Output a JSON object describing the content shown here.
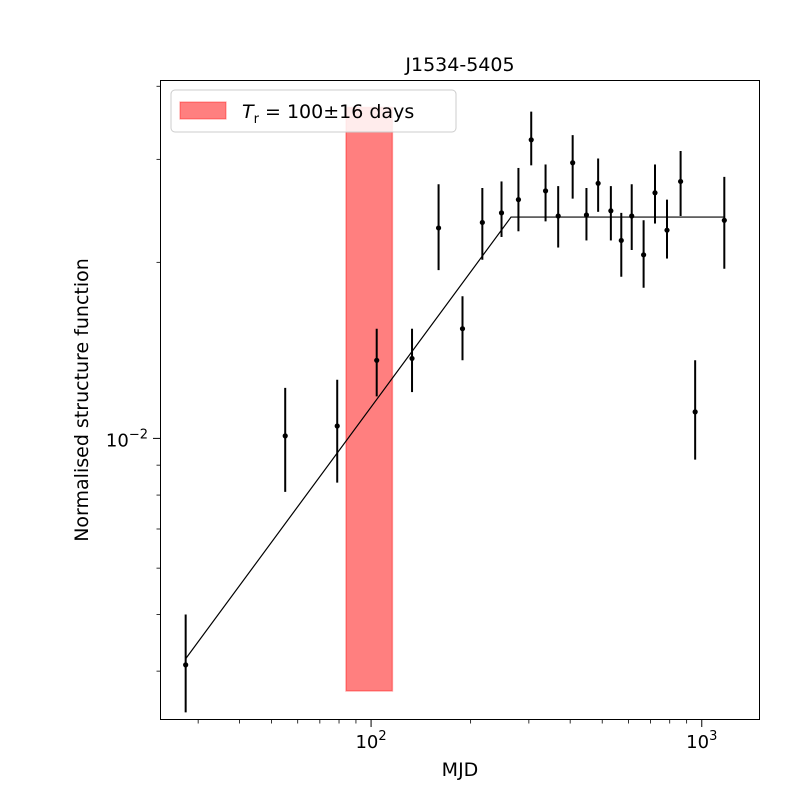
{
  "chart_data": {
    "type": "scatter",
    "title": "J1534-5405",
    "xlabel": "MJD",
    "ylabel": "Normalised structure function",
    "xscale": "log",
    "yscale": "log",
    "xlim": [
      23,
      1500
    ],
    "ylim": [
      0.0033,
      0.041
    ],
    "grid": false,
    "legend_position": "top-left",
    "x_major_ticks": [
      {
        "value": 100,
        "base": "10",
        "exp": "2"
      },
      {
        "value": 1000,
        "base": "10",
        "exp": "3"
      }
    ],
    "y_major_ticks": [
      {
        "value": 0.01,
        "base": "10",
        "exp": "−2"
      }
    ],
    "points": [
      {
        "x": 27.5,
        "y": 0.0041,
        "yerr_low": 0.0034,
        "yerr_high": 0.005
      },
      {
        "x": 55,
        "y": 0.0101,
        "yerr_low": 0.0081,
        "yerr_high": 0.0122
      },
      {
        "x": 79,
        "y": 0.0105,
        "yerr_low": 0.0084,
        "yerr_high": 0.0126
      },
      {
        "x": 104,
        "y": 0.0136,
        "yerr_low": 0.0118,
        "yerr_high": 0.0154
      },
      {
        "x": 133,
        "y": 0.0137,
        "yerr_low": 0.012,
        "yerr_high": 0.0154
      },
      {
        "x": 160,
        "y": 0.0229,
        "yerr_low": 0.0194,
        "yerr_high": 0.0272
      },
      {
        "x": 189,
        "y": 0.0154,
        "yerr_low": 0.0136,
        "yerr_high": 0.0175
      },
      {
        "x": 217,
        "y": 0.0234,
        "yerr_low": 0.0202,
        "yerr_high": 0.0268
      },
      {
        "x": 248,
        "y": 0.0243,
        "yerr_low": 0.0221,
        "yerr_high": 0.0275
      },
      {
        "x": 279,
        "y": 0.0256,
        "yerr_low": 0.0226,
        "yerr_high": 0.029
      },
      {
        "x": 305,
        "y": 0.0324,
        "yerr_low": 0.0293,
        "yerr_high": 0.0362
      },
      {
        "x": 337,
        "y": 0.0265,
        "yerr_low": 0.0235,
        "yerr_high": 0.0294
      },
      {
        "x": 368,
        "y": 0.024,
        "yerr_low": 0.0212,
        "yerr_high": 0.027
      },
      {
        "x": 407,
        "y": 0.0296,
        "yerr_low": 0.0257,
        "yerr_high": 0.033
      },
      {
        "x": 448,
        "y": 0.0241,
        "yerr_low": 0.0218,
        "yerr_high": 0.0268
      },
      {
        "x": 486,
        "y": 0.0273,
        "yerr_low": 0.0244,
        "yerr_high": 0.0301
      },
      {
        "x": 531,
        "y": 0.0245,
        "yerr_low": 0.0218,
        "yerr_high": 0.027
      },
      {
        "x": 571,
        "y": 0.0218,
        "yerr_low": 0.0189,
        "yerr_high": 0.0243
      },
      {
        "x": 614,
        "y": 0.024,
        "yerr_low": 0.021,
        "yerr_high": 0.0272
      },
      {
        "x": 667,
        "y": 0.0206,
        "yerr_low": 0.0181,
        "yerr_high": 0.0236
      },
      {
        "x": 722,
        "y": 0.0263,
        "yerr_low": 0.0233,
        "yerr_high": 0.0294
      },
      {
        "x": 785,
        "y": 0.0227,
        "yerr_low": 0.0203,
        "yerr_high": 0.0256
      },
      {
        "x": 863,
        "y": 0.0275,
        "yerr_low": 0.024,
        "yerr_high": 0.031
      },
      {
        "x": 955,
        "y": 0.0111,
        "yerr_low": 0.0092,
        "yerr_high": 0.0136
      },
      {
        "x": 1170,
        "y": 0.0236,
        "yerr_low": 0.0195,
        "yerr_high": 0.028
      }
    ],
    "model_line": [
      [
        27.5,
        0.0042
      ],
      [
        265,
        0.0239
      ],
      [
        1170,
        0.0239
      ]
    ],
    "band": {
      "x_low": 84,
      "x_high": 116,
      "y_low": 0.0037,
      "y_high": 0.0368,
      "color": "#ff0000",
      "alpha": 0.5
    },
    "legend": {
      "label_symbol": "T",
      "label_subscript": "r",
      "label_value": " = 100±16 days"
    },
    "colors": {
      "points": "#000000",
      "line": "#000000",
      "band": "#ff7f7f",
      "band_edge": "#ff5555"
    }
  }
}
